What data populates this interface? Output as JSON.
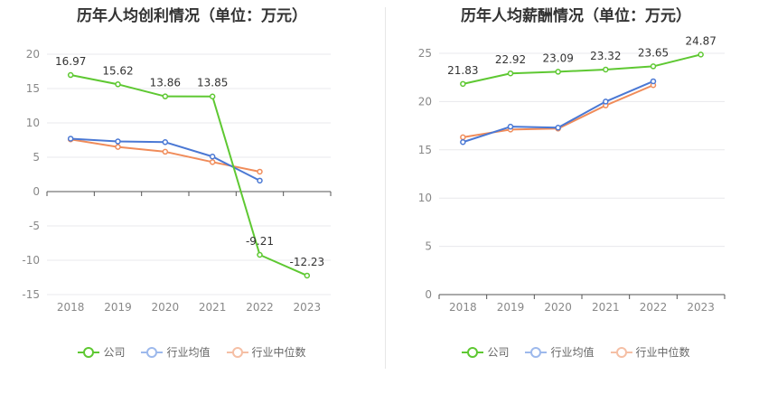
{
  "colors": {
    "company": "#5ec832",
    "industry_avg": "#4a78d4",
    "industry_median": "#f08c5a",
    "legend_company": "#5ec832",
    "legend_industry_avg": "#9db9ec",
    "legend_industry_median": "#f5bfa5"
  },
  "legend": {
    "company": "公司",
    "industry_avg": "行业均值",
    "industry_median": "行业中位数"
  },
  "chart_data": [
    {
      "type": "line",
      "title": "历年人均创利情况（单位：万元）",
      "categories": [
        "2018",
        "2019",
        "2020",
        "2021",
        "2022",
        "2023"
      ],
      "ylim": [
        -15,
        20
      ],
      "yticks": [
        20,
        15,
        10,
        5,
        0,
        -5,
        -10,
        -15
      ],
      "grid": true,
      "legend_position": "bottom",
      "series": [
        {
          "name": "公司",
          "key": "company",
          "values": [
            16.97,
            15.62,
            13.86,
            13.85,
            -9.21,
            -12.23
          ],
          "labels": [
            "16.97",
            "15.62",
            "13.86",
            "13.85",
            "-9.21",
            "-12.23"
          ]
        },
        {
          "name": "行业均值",
          "key": "industry_avg",
          "values": [
            7.7,
            7.3,
            7.2,
            5.1,
            1.6,
            null
          ]
        },
        {
          "name": "行业中位数",
          "key": "industry_median",
          "values": [
            7.6,
            6.5,
            5.8,
            4.3,
            2.9,
            null
          ]
        }
      ]
    },
    {
      "type": "line",
      "title": "历年人均薪酬情况（单位：万元）",
      "categories": [
        "2018",
        "2019",
        "2020",
        "2021",
        "2022",
        "2023"
      ],
      "ylim": [
        0,
        25
      ],
      "yticks": [
        25,
        20,
        15,
        10,
        5,
        0
      ],
      "grid": true,
      "legend_position": "bottom",
      "series": [
        {
          "name": "公司",
          "key": "company",
          "values": [
            21.83,
            22.92,
            23.09,
            23.32,
            23.65,
            24.87
          ],
          "labels": [
            "21.83",
            "22.92",
            "23.09",
            "23.32",
            "23.65",
            "24.87"
          ]
        },
        {
          "name": "行业均值",
          "key": "industry_avg",
          "values": [
            15.8,
            17.4,
            17.3,
            20.0,
            22.1,
            null
          ]
        },
        {
          "name": "行业中位数",
          "key": "industry_median",
          "values": [
            16.3,
            17.1,
            17.2,
            19.6,
            21.7,
            null
          ]
        }
      ]
    }
  ]
}
